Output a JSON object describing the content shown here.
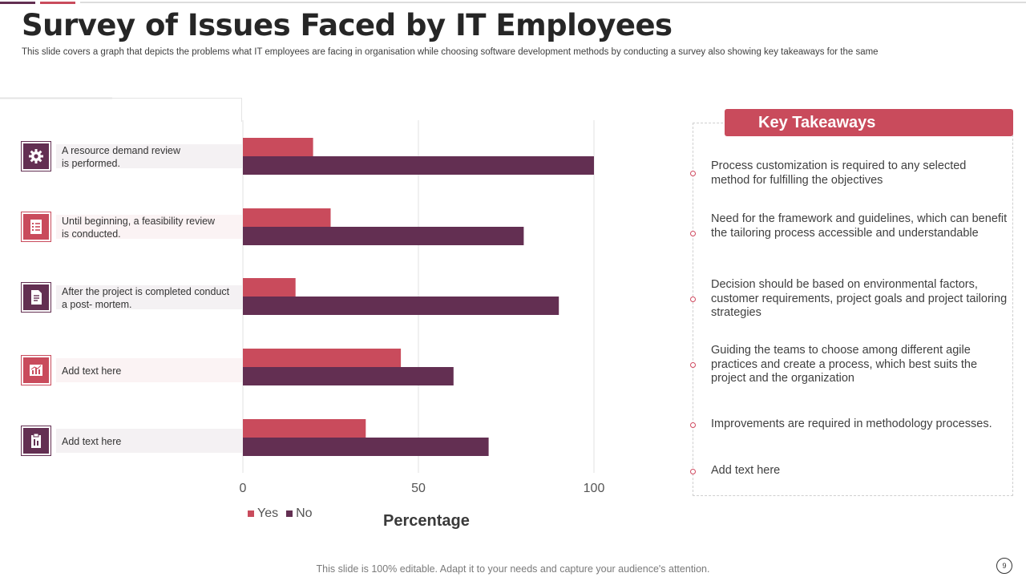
{
  "title": "Survey of Issues Faced by IT Employees",
  "subtitle": "This slide covers a graph that depicts the problems what IT employees are facing in organisation while choosing software development methods by conducting a survey  also showing key takeaways for the same",
  "colors": {
    "yes": "#c94b5c",
    "no": "#632f52",
    "accent": "#c94b5c",
    "dark": "#632f52"
  },
  "categories": [
    {
      "label": "A resource  demand review\nis performed.",
      "icon": "gear-icon",
      "style": "dark"
    },
    {
      "label": "Until beginning,  a feasibility review\nis conducted.",
      "icon": "checklist-icon",
      "style": "light"
    },
    {
      "label": "After the project is completed conduct\na post- mortem.",
      "icon": "document-icon",
      "style": "dark"
    },
    {
      "label": "Add text here",
      "icon": "chart-report-icon",
      "style": "light"
    },
    {
      "label": "Add text here",
      "icon": "clipboard-icon",
      "style": "dark"
    }
  ],
  "chart_data": {
    "type": "bar",
    "orientation": "horizontal",
    "categories": [
      "A resource  demand review is performed.",
      "Until beginning,  a feasibility review is conducted.",
      "After the project is completed conduct a post- mortem.",
      "Add text here",
      "Add text here"
    ],
    "series": [
      {
        "name": "Yes",
        "values": [
          20,
          25,
          15,
          45,
          35
        ]
      },
      {
        "name": "No",
        "values": [
          100,
          80,
          90,
          60,
          70
        ]
      }
    ],
    "xlabel": "Percentage",
    "xlim": [
      0,
      100
    ],
    "xticks": [
      "0",
      "50",
      "100"
    ],
    "grid": true,
    "legend": "bottom-left"
  },
  "legend": {
    "yes": "Yes",
    "no": "No"
  },
  "key_takeaways": {
    "header": "Key Takeaways",
    "items": [
      "Process customization is required to any selected method for fulfilling the objectives",
      "Need for the framework and guidelines,  which can benefit the tailoring  process accessible and understandable",
      "Decision should be based on environmental factors, customer requirements, project goals and project tailoring strategies",
      "Guiding the teams to choose among different agile practices and create a process, which best suits the project and the organization",
      "Improvements are required in methodology    processes.",
      "Add text here"
    ]
  },
  "footer": "This slide is 100% editable. Adapt it to your needs and capture your audience's attention.",
  "page_number": "9"
}
